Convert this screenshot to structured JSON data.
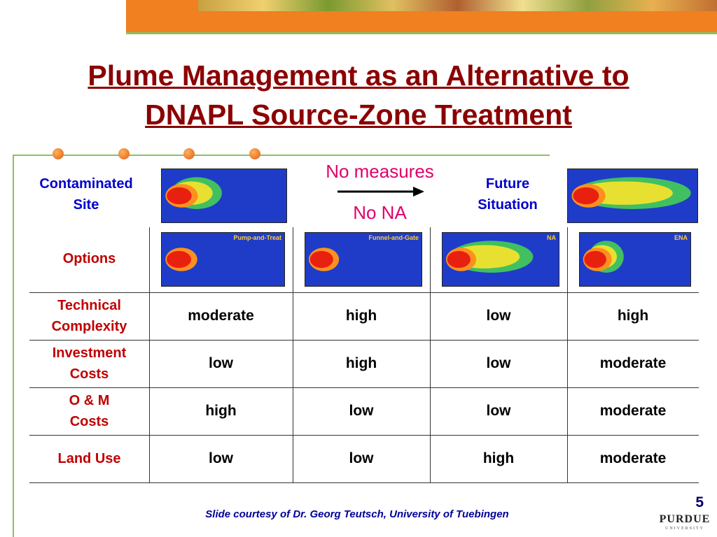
{
  "header": {
    "title_lines": [
      "Plume Management as an Alternative to",
      "DNAPL Source-Zone Treatment"
    ]
  },
  "top_row": {
    "left_label_lines": [
      "Contaminated",
      "Site"
    ],
    "arrow_top": "No measures",
    "arrow_bottom": "No NA",
    "right_label_lines": [
      "Future",
      "Situation"
    ]
  },
  "table": {
    "options_label": "Options",
    "options": [
      "Pump-and-Treat",
      "Funnel-and-Gate",
      "NA",
      "ENA"
    ],
    "rows": [
      {
        "label_lines": [
          "Technical",
          "Complexity"
        ],
        "cells": [
          "moderate",
          "high",
          "low",
          "high"
        ]
      },
      {
        "label_lines": [
          "Investment",
          "Costs"
        ],
        "cells": [
          "low",
          "high",
          "low",
          "moderate"
        ]
      },
      {
        "label_lines": [
          "O & M",
          "Costs"
        ],
        "cells": [
          "high",
          "low",
          "low",
          "moderate"
        ]
      },
      {
        "label_lines": [
          "Land Use"
        ],
        "cells": [
          "low",
          "low",
          "high",
          "moderate"
        ]
      }
    ]
  },
  "footer": {
    "credit": "Slide courtesy of Dr. Georg Teutsch, University of Tuebingen",
    "page_number": "5",
    "logo": "PURDUE",
    "logo_sub": "UNIVERSITY"
  }
}
